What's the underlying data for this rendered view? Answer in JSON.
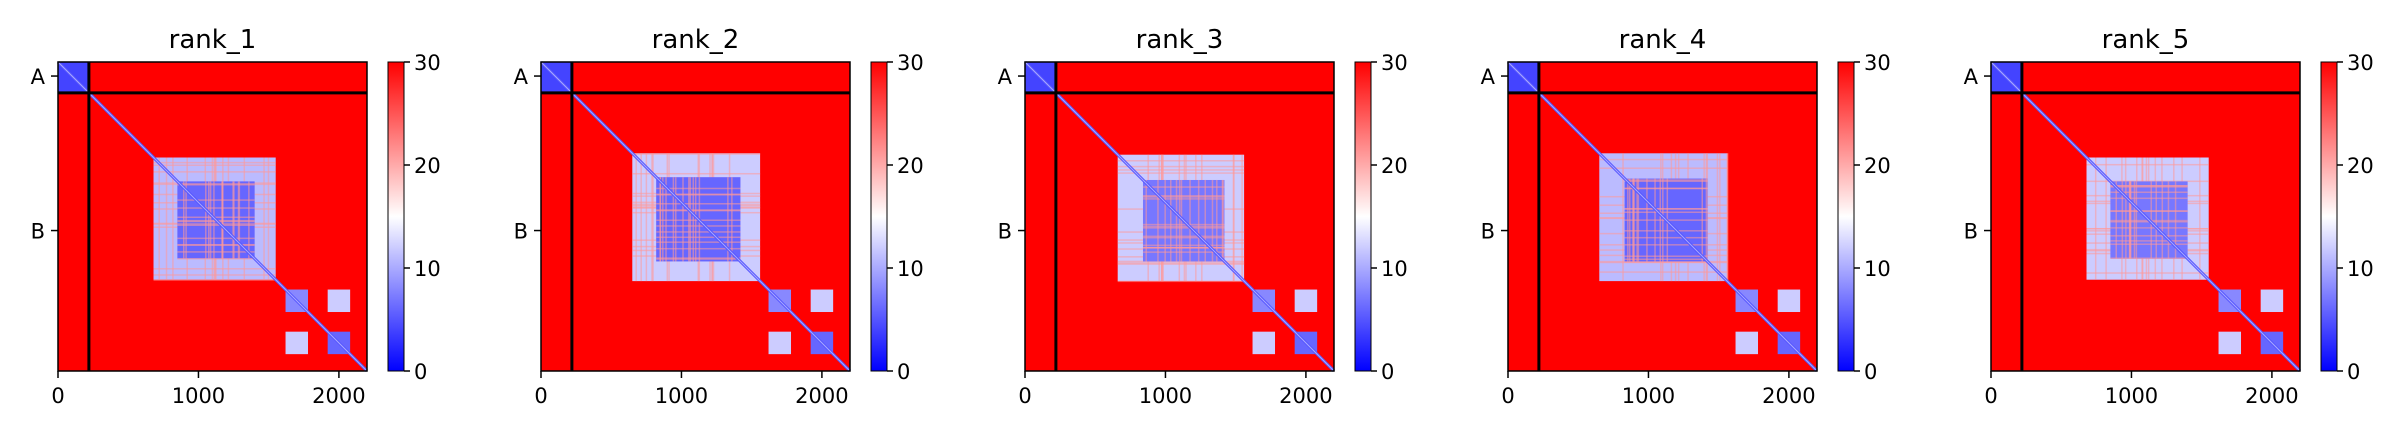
{
  "chart_data": [
    {
      "type": "heatmap",
      "title": "rank_1",
      "xlabel": "",
      "ylabel": "",
      "xlim": [
        0,
        2200
      ],
      "x_ticks": [
        0,
        1000,
        2000
      ],
      "ylim": [
        2200,
        0
      ],
      "y_tick_labels": [
        {
          "label": "A",
          "value": 100
        },
        {
          "label": "B",
          "value": 1200
        }
      ],
      "chain_boundary": 220,
      "colorbar": {
        "min": 0,
        "max": 30,
        "ticks": [
          0,
          10,
          20,
          30
        ],
        "colormap": "bwr"
      },
      "blocks": [
        {
          "x": [
            0,
            220
          ],
          "y": [
            0,
            220
          ],
          "value": 4
        },
        {
          "x": [
            220,
            2200
          ],
          "y": [
            0,
            220
          ],
          "value": 30
        },
        {
          "x": [
            680,
            1550
          ],
          "y": [
            680,
            1550
          ],
          "value": 11
        },
        {
          "x": [
            850,
            1400
          ],
          "y": [
            850,
            1400
          ],
          "value": 6
        },
        {
          "x": [
            1620,
            1780
          ],
          "y": [
            1620,
            1780
          ],
          "value": 8
        },
        {
          "x": [
            1920,
            2080
          ],
          "y": [
            1620,
            1780
          ],
          "value": 12
        },
        {
          "x": [
            1620,
            1780
          ],
          "y": [
            1920,
            2080
          ],
          "value": 12
        },
        {
          "x": [
            1920,
            2080
          ],
          "y": [
            1920,
            2080
          ],
          "value": 6
        }
      ]
    },
    {
      "type": "heatmap",
      "title": "rank_2",
      "xlabel": "",
      "ylabel": "",
      "xlim": [
        0,
        2200
      ],
      "x_ticks": [
        0,
        1000,
        2000
      ],
      "ylim": [
        2200,
        0
      ],
      "y_tick_labels": [
        {
          "label": "A",
          "value": 100
        },
        {
          "label": "B",
          "value": 1200
        }
      ],
      "chain_boundary": 220,
      "colorbar": {
        "min": 0,
        "max": 30,
        "ticks": [
          0,
          10,
          20,
          30
        ],
        "colormap": "bwr"
      },
      "blocks": [
        {
          "x": [
            0,
            220
          ],
          "y": [
            0,
            220
          ],
          "value": 4
        },
        {
          "x": [
            220,
            2200
          ],
          "y": [
            0,
            220
          ],
          "value": 30
        },
        {
          "x": [
            650,
            1560
          ],
          "y": [
            650,
            1560
          ],
          "value": 12
        },
        {
          "x": [
            820,
            1420
          ],
          "y": [
            820,
            1420
          ],
          "value": 6
        },
        {
          "x": [
            1620,
            1780
          ],
          "y": [
            1620,
            1780
          ],
          "value": 8
        },
        {
          "x": [
            1920,
            2080
          ],
          "y": [
            1620,
            1780
          ],
          "value": 12
        },
        {
          "x": [
            1620,
            1780
          ],
          "y": [
            1920,
            2080
          ],
          "value": 12
        },
        {
          "x": [
            1920,
            2080
          ],
          "y": [
            1920,
            2080
          ],
          "value": 6
        }
      ]
    },
    {
      "type": "heatmap",
      "title": "rank_3",
      "xlabel": "",
      "ylabel": "",
      "xlim": [
        0,
        2200
      ],
      "x_ticks": [
        0,
        1000,
        2000
      ],
      "ylim": [
        2200,
        0
      ],
      "y_tick_labels": [
        {
          "label": "A",
          "value": 100
        },
        {
          "label": "B",
          "value": 1200
        }
      ],
      "chain_boundary": 220,
      "colorbar": {
        "min": 0,
        "max": 30,
        "ticks": [
          0,
          10,
          20,
          30
        ],
        "colormap": "bwr"
      },
      "blocks": [
        {
          "x": [
            0,
            220
          ],
          "y": [
            0,
            220
          ],
          "value": 4
        },
        {
          "x": [
            220,
            2200
          ],
          "y": [
            0,
            220
          ],
          "value": 30
        },
        {
          "x": [
            660,
            1560
          ],
          "y": [
            660,
            1560
          ],
          "value": 12
        },
        {
          "x": [
            840,
            1420
          ],
          "y": [
            840,
            1420
          ],
          "value": 7
        },
        {
          "x": [
            1620,
            1780
          ],
          "y": [
            1620,
            1780
          ],
          "value": 8
        },
        {
          "x": [
            1920,
            2080
          ],
          "y": [
            1620,
            1780
          ],
          "value": 12
        },
        {
          "x": [
            1620,
            1780
          ],
          "y": [
            1920,
            2080
          ],
          "value": 12
        },
        {
          "x": [
            1920,
            2080
          ],
          "y": [
            1920,
            2080
          ],
          "value": 6
        }
      ]
    },
    {
      "type": "heatmap",
      "title": "rank_4",
      "xlabel": "",
      "ylabel": "",
      "xlim": [
        0,
        2200
      ],
      "x_ticks": [
        0,
        1000,
        2000
      ],
      "ylim": [
        2200,
        0
      ],
      "y_tick_labels": [
        {
          "label": "A",
          "value": 100
        },
        {
          "label": "B",
          "value": 1200
        }
      ],
      "chain_boundary": 220,
      "colorbar": {
        "min": 0,
        "max": 30,
        "ticks": [
          0,
          10,
          20,
          30
        ],
        "colormap": "bwr"
      },
      "blocks": [
        {
          "x": [
            0,
            220
          ],
          "y": [
            0,
            220
          ],
          "value": 4
        },
        {
          "x": [
            220,
            2200
          ],
          "y": [
            0,
            220
          ],
          "value": 30
        },
        {
          "x": [
            650,
            1560
          ],
          "y": [
            650,
            1560
          ],
          "value": 11
        },
        {
          "x": [
            830,
            1420
          ],
          "y": [
            830,
            1420
          ],
          "value": 6
        },
        {
          "x": [
            1620,
            1780
          ],
          "y": [
            1620,
            1780
          ],
          "value": 8
        },
        {
          "x": [
            1920,
            2080
          ],
          "y": [
            1620,
            1780
          ],
          "value": 12
        },
        {
          "x": [
            1620,
            1780
          ],
          "y": [
            1920,
            2080
          ],
          "value": 12
        },
        {
          "x": [
            1920,
            2080
          ],
          "y": [
            1920,
            2080
          ],
          "value": 6
        }
      ]
    },
    {
      "type": "heatmap",
      "title": "rank_5",
      "xlabel": "",
      "ylabel": "",
      "xlim": [
        0,
        2200
      ],
      "x_ticks": [
        0,
        1000,
        2000
      ],
      "ylim": [
        2200,
        0
      ],
      "y_tick_labels": [
        {
          "label": "A",
          "value": 100
        },
        {
          "label": "B",
          "value": 1200
        }
      ],
      "chain_boundary": 220,
      "colorbar": {
        "min": 0,
        "max": 30,
        "ticks": [
          0,
          10,
          20,
          30
        ],
        "colormap": "bwr"
      },
      "blocks": [
        {
          "x": [
            0,
            220
          ],
          "y": [
            0,
            220
          ],
          "value": 4
        },
        {
          "x": [
            220,
            2200
          ],
          "y": [
            0,
            220
          ],
          "value": 30
        },
        {
          "x": [
            680,
            1550
          ],
          "y": [
            680,
            1550
          ],
          "value": 12
        },
        {
          "x": [
            850,
            1400
          ],
          "y": [
            850,
            1400
          ],
          "value": 7
        },
        {
          "x": [
            1620,
            1780
          ],
          "y": [
            1620,
            1780
          ],
          "value": 8
        },
        {
          "x": [
            1920,
            2080
          ],
          "y": [
            1620,
            1780
          ],
          "value": 12
        },
        {
          "x": [
            1620,
            1780
          ],
          "y": [
            1920,
            2080
          ],
          "value": 12
        },
        {
          "x": [
            1920,
            2080
          ],
          "y": [
            1920,
            2080
          ],
          "value": 6
        }
      ]
    }
  ]
}
